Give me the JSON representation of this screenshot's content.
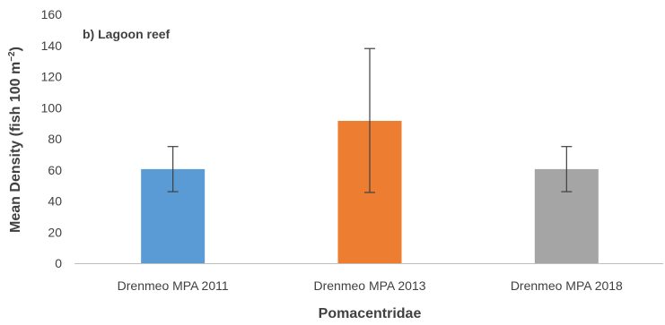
{
  "chart_data": {
    "type": "bar",
    "annotation": "b) Lagoon reef",
    "xlabel": "Pomacentridae",
    "ylabel": "Mean Density (fish 100 m",
    "ylabel_superscript": "−2",
    "ylabel_suffix": ")",
    "ylim": [
      0,
      160
    ],
    "yticks": [
      0,
      20,
      40,
      60,
      80,
      100,
      120,
      140,
      160
    ],
    "grid": false,
    "categories": [
      "Drenmeo MPA 2011",
      "Drenmeo MPA 2013",
      "Drenmeo MPA 2018"
    ],
    "values": [
      60.5,
      91.5,
      60.5
    ],
    "errors": [
      {
        "low": 46,
        "high": 75
      },
      {
        "low": 45.5,
        "high": 138
      },
      {
        "low": 46,
        "high": 75
      }
    ],
    "colors": [
      "#5B9BD5",
      "#ED7D31",
      "#A5A5A5"
    ],
    "axis_color": "#BFBFBF",
    "error_bar_color": "#404040"
  }
}
